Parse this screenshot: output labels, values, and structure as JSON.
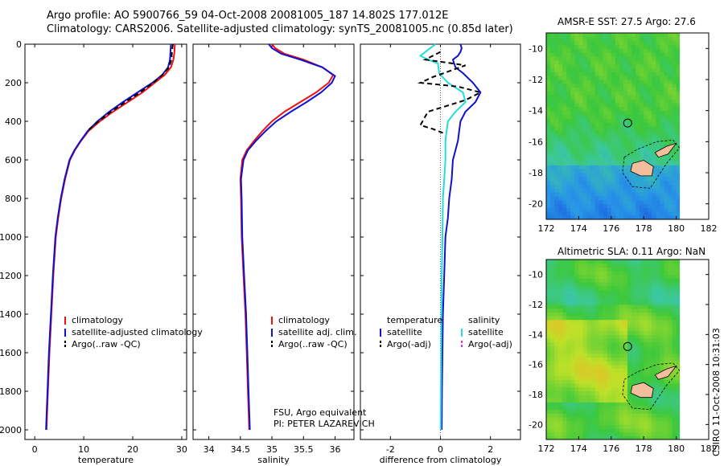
{
  "figure": {
    "title_line1": "Argo profile: AO 5900766_59 04-Oct-2008 20081005_187 14.802S 177.012E",
    "title_line2": "Climatology: CARS2006. Satellite-adjusted climatology: synTS_20081005.nc (0.85d later)",
    "side_credit": "CSIRO 11-Oct-2008 10:31:03",
    "pi_line1": "FSU, Argo equivalent",
    "pi_line2": "PI: PETER LAZAREVICH"
  },
  "colors": {
    "climatology": "#ee1111",
    "satellite": "#1111cc",
    "argo": "#000000",
    "sal_sat": "#22dddd",
    "sal_argo": "#dd33dd"
  },
  "chart_data": [
    {
      "id": "temperature",
      "type": "line",
      "xlabel": "temperature",
      "ylabel": "",
      "xlim": [
        -2,
        31
      ],
      "ylim": [
        2050,
        0
      ],
      "xticks": [
        0,
        10,
        20,
        30
      ],
      "yticks": [
        0,
        200,
        400,
        600,
        800,
        1000,
        1200,
        1400,
        1600,
        1800,
        2000
      ],
      "legend": [
        "climatology",
        "satellite-adjusted climatology",
        "Argo(..raw -QC)"
      ],
      "series": [
        {
          "name": "climatology",
          "color": "#ee1111",
          "points": [
            [
              28.6,
              0
            ],
            [
              28.5,
              40
            ],
            [
              28.3,
              80
            ],
            [
              27.8,
              120
            ],
            [
              26.5,
              160
            ],
            [
              24.5,
              200
            ],
            [
              22,
              250
            ],
            [
              19,
              300
            ],
            [
              16,
              350
            ],
            [
              13.3,
              400
            ],
            [
              11,
              450
            ],
            [
              9.5,
              500
            ],
            [
              8.2,
              550
            ],
            [
              7.2,
              600
            ],
            [
              6.2,
              700
            ],
            [
              5.4,
              800
            ],
            [
              4.8,
              900
            ],
            [
              4.3,
              1000
            ],
            [
              3.8,
              1200
            ],
            [
              3.4,
              1400
            ],
            [
              3.0,
              1600
            ],
            [
              2.7,
              1800
            ],
            [
              2.4,
              2000
            ]
          ]
        },
        {
          "name": "satellite-adjusted climatology",
          "color": "#1111cc",
          "points": [
            [
              27.8,
              0
            ],
            [
              27.7,
              40
            ],
            [
              27.6,
              80
            ],
            [
              27.2,
              120
            ],
            [
              26,
              160
            ],
            [
              24,
              200
            ],
            [
              21,
              250
            ],
            [
              18,
              300
            ],
            [
              15.2,
              350
            ],
            [
              12.8,
              400
            ],
            [
              10.8,
              450
            ],
            [
              9.4,
              500
            ],
            [
              8.1,
              550
            ],
            [
              7.1,
              600
            ],
            [
              6.1,
              700
            ],
            [
              5.3,
              800
            ],
            [
              4.7,
              900
            ],
            [
              4.2,
              1000
            ],
            [
              3.7,
              1200
            ],
            [
              3.3,
              1400
            ],
            [
              2.9,
              1600
            ],
            [
              2.6,
              1800
            ],
            [
              2.3,
              2000
            ]
          ]
        },
        {
          "name": "Argo(..raw -QC)",
          "color": "#000000",
          "dashed": true,
          "points": [
            [
              28.2,
              0
            ],
            [
              28.0,
              40
            ],
            [
              27.9,
              80
            ],
            [
              27.4,
              120
            ],
            [
              26.0,
              160
            ],
            [
              24.2,
              200
            ],
            [
              21.5,
              250
            ],
            [
              18.5,
              300
            ],
            [
              15.6,
              350
            ],
            [
              13.0,
              400
            ],
            [
              10.7,
              450
            ]
          ]
        }
      ]
    },
    {
      "id": "salinity",
      "type": "line",
      "xlabel": "salinity",
      "ylabel": "",
      "xlim": [
        33.75,
        36.3
      ],
      "ylim": [
        2050,
        0
      ],
      "xticks": [
        34,
        34.5,
        35,
        35.5,
        36
      ],
      "legend": [
        "climatology",
        "satellite adj. clim.",
        "Argo(..raw -QC)"
      ],
      "series": [
        {
          "name": "climatology",
          "color": "#ee1111",
          "points": [
            [
              35.0,
              0
            ],
            [
              35.05,
              20
            ],
            [
              35.2,
              50
            ],
            [
              35.5,
              80
            ],
            [
              35.8,
              120
            ],
            [
              35.97,
              160
            ],
            [
              35.9,
              200
            ],
            [
              35.7,
              250
            ],
            [
              35.45,
              300
            ],
            [
              35.2,
              350
            ],
            [
              35.0,
              400
            ],
            [
              34.85,
              450
            ],
            [
              34.72,
              500
            ],
            [
              34.6,
              550
            ],
            [
              34.53,
              600
            ],
            [
              34.5,
              700
            ],
            [
              34.51,
              800
            ],
            [
              34.52,
              1000
            ],
            [
              34.55,
              1200
            ],
            [
              34.58,
              1400
            ],
            [
              34.6,
              1600
            ],
            [
              34.62,
              1800
            ],
            [
              34.64,
              2000
            ]
          ]
        },
        {
          "name": "satellite adj. clim.",
          "color": "#1111cc",
          "points": [
            [
              34.95,
              0
            ],
            [
              35.0,
              20
            ],
            [
              35.15,
              50
            ],
            [
              35.45,
              80
            ],
            [
              35.8,
              120
            ],
            [
              36.0,
              165
            ],
            [
              35.95,
              200
            ],
            [
              35.78,
              250
            ],
            [
              35.55,
              300
            ],
            [
              35.3,
              350
            ],
            [
              35.07,
              400
            ],
            [
              34.9,
              450
            ],
            [
              34.75,
              500
            ],
            [
              34.62,
              550
            ],
            [
              34.55,
              600
            ],
            [
              34.51,
              700
            ],
            [
              34.52,
              800
            ],
            [
              34.53,
              1000
            ],
            [
              34.56,
              1200
            ],
            [
              34.59,
              1400
            ],
            [
              34.61,
              1600
            ],
            [
              34.63,
              1800
            ],
            [
              34.65,
              2000
            ]
          ]
        },
        {
          "name": "Argo(..raw -QC)",
          "color": "#000000",
          "dashed": true,
          "points": []
        }
      ]
    },
    {
      "id": "difference",
      "type": "line",
      "xlabel": "difference from climatology",
      "ylabel": "",
      "xlim": [
        -3.2,
        3.2
      ],
      "ylim": [
        2050,
        0
      ],
      "xticks": [
        -2,
        0,
        2
      ],
      "legend_groups": [
        {
          "header": "temperature",
          "items": [
            "satellite",
            "Argo(-adj)"
          ]
        },
        {
          "header": "salinity",
          "items": [
            "satellite",
            "Argo(-adj)"
          ]
        }
      ],
      "series": [
        {
          "name": "temperature satellite",
          "color": "#1111cc",
          "points": [
            [
              0.8,
              0
            ],
            [
              0.85,
              20
            ],
            [
              0.8,
              40
            ],
            [
              0.7,
              60
            ],
            [
              0.5,
              80
            ],
            [
              0.6,
              120
            ],
            [
              0.9,
              150
            ],
            [
              1.3,
              200
            ],
            [
              1.6,
              250
            ],
            [
              1.4,
              300
            ],
            [
              1.0,
              350
            ],
            [
              0.8,
              400
            ],
            [
              0.75,
              450
            ],
            [
              0.7,
              500
            ],
            [
              0.6,
              550
            ],
            [
              0.5,
              600
            ],
            [
              0.45,
              700
            ],
            [
              0.35,
              800
            ],
            [
              0.3,
              900
            ],
            [
              0.2,
              1000
            ],
            [
              0.15,
              1200
            ],
            [
              0.1,
              1400
            ],
            [
              0.08,
              1600
            ],
            [
              0.06,
              1800
            ],
            [
              0.05,
              2000
            ]
          ]
        },
        {
          "name": "salinity satellite",
          "color": "#22dddd",
          "points": [
            [
              -0.2,
              0
            ],
            [
              -0.6,
              40
            ],
            [
              -0.8,
              60
            ],
            [
              -0.5,
              80
            ],
            [
              -0.1,
              100
            ],
            [
              -0.05,
              150
            ],
            [
              0.3,
              200
            ],
            [
              0.9,
              250
            ],
            [
              1.0,
              300
            ],
            [
              0.6,
              350
            ],
            [
              0.3,
              400
            ],
            [
              0.2,
              500
            ],
            [
              0.2,
              600
            ],
            [
              0.15,
              700
            ],
            [
              0.1,
              800
            ],
            [
              0.08,
              1000
            ],
            [
              0.05,
              1200
            ],
            [
              0.04,
              1400
            ],
            [
              0.03,
              1600
            ],
            [
              0.02,
              1800
            ],
            [
              0.01,
              2000
            ]
          ]
        },
        {
          "name": "temperature Argo(-adj)",
          "color": "#000000",
          "dashed": true,
          "points": [
            [
              0.0,
              40
            ],
            [
              -0.6,
              80
            ],
            [
              0.5,
              100
            ],
            [
              1.0,
              110
            ],
            [
              -0.3,
              170
            ],
            [
              -0.8,
              200
            ],
            [
              0.7,
              220
            ],
            [
              1.6,
              250
            ],
            [
              1.0,
              290
            ],
            [
              -0.5,
              350
            ],
            [
              -0.8,
              420
            ],
            [
              -0.3,
              440
            ],
            [
              0.1,
              460
            ]
          ]
        }
      ]
    },
    {
      "id": "sst_map",
      "type": "heatmap",
      "title": "AMSR-E SST: 27.5  Argo: 27.6",
      "xlim": [
        172,
        182
      ],
      "ylim": [
        -21,
        -9
      ],
      "xticks": [
        172,
        174,
        176,
        178,
        180,
        182
      ],
      "yticks": [
        -10,
        -12,
        -14,
        -16,
        -18,
        -20
      ],
      "data_xmax": 180.2,
      "argo_position": [
        177.012,
        -14.802
      ],
      "palette": "sst"
    },
    {
      "id": "sla_map",
      "type": "heatmap",
      "title": "Altimetric SLA: 0.11  Argo: NaN",
      "xlim": [
        172,
        182
      ],
      "ylim": [
        -21,
        -9
      ],
      "xticks": [
        172,
        174,
        176,
        178,
        180,
        182
      ],
      "yticks": [
        -10,
        -12,
        -14,
        -16,
        -18,
        -20
      ],
      "data_xmax": 180.2,
      "argo_position": [
        177.012,
        -14.802
      ],
      "palette": "sla"
    }
  ]
}
